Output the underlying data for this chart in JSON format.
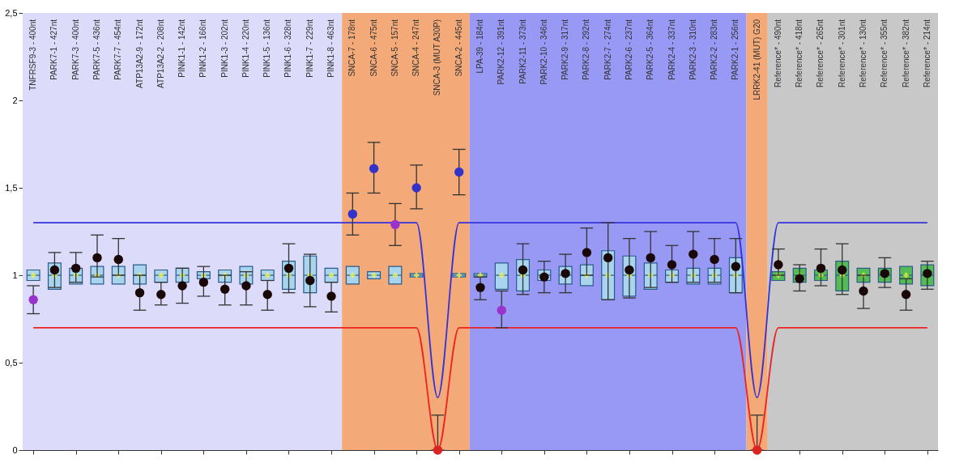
{
  "chart_data": {
    "type": "box",
    "categories": [
      "TNFRSF9-3 - 400nt",
      "PARK7-1 - 427nt",
      "PARK7-3 - 400nt",
      "PARK7-5 - 436nt",
      "PARK7-7 - 454nt",
      "ATP13A2-9 - 172nt",
      "ATP13A2-2 - 208nt",
      "PINK1-1 - 142nt",
      "PINK1-2 - 166nt",
      "PINK1-3 - 202nt",
      "PINK1-4 - 220nt",
      "PINK1-5 - 136nt",
      "PINK1-6 - 328nt",
      "PINK1-7 - 229nt",
      "PINK1-8 - 463nt",
      "SNCA-7 - 178nt",
      "SNCA-6 - 475nt",
      "SNCA-5 - 157nt",
      "SNCA-4 - 247nt",
      "SNCA-3 (MUT A30P)",
      "SNCA-2 - 445nt",
      "LPA-39 - 184nt",
      "PARK2-12 - 391nt",
      "PARK2-11 - 373nt",
      "PARK2-10 - 346nt",
      "PARK2-9 - 317nt",
      "PARK2-8 - 292nt",
      "PARK2-7 - 274nt",
      "PARK2-6 - 237nt",
      "PARK2-5 - 364nt",
      "PARK2-4 - 337nt",
      "PARK2-3 - 310nt",
      "PARK2-2 - 283nt",
      "PARK2-1 - 256nt",
      "LRRK2-41 (MUT) G20",
      "Reference* - 490nt",
      "Reference* - 418nt",
      "Reference* - 265nt",
      "Reference* - 301nt",
      "Reference* - 130nt",
      "Reference* - 355nt",
      "Reference* - 382nt",
      "Reference* - 214nt"
    ],
    "ylim": [
      0,
      2.5
    ],
    "yticks": [
      0,
      {
        "value": 0.5,
        "label": "0,5"
      },
      1,
      {
        "value": 1.5,
        "label": "1,5"
      },
      2,
      {
        "value": 2.5,
        "label": "2,5"
      }
    ],
    "bands": [
      {
        "axis": "x",
        "from": "TNFRSF9-3 - 400nt",
        "to": "PINK1-8 - 463nt",
        "color": "#dcdcfa"
      },
      {
        "axis": "x",
        "from": "SNCA-7 - 178nt",
        "to": "SNCA-2 - 445nt",
        "color": "#f3aa78"
      },
      {
        "axis": "x",
        "from": "LPA-39 - 184nt",
        "to": "PARK2-1 - 256nt",
        "color": "#9898f5"
      },
      {
        "axis": "x",
        "from": "LRRK2-41 (MUT) G20",
        "to": "LRRK2-41 (MUT) G20",
        "color": "#f3aa78"
      },
      {
        "axis": "x",
        "from": "Reference* - 490nt",
        "to": "Reference* - 214nt",
        "color": "#c8c8c8"
      }
    ],
    "series": [
      {
        "boxes": [
          {
            "low": 0.97,
            "q1": 0.97,
            "median": 1,
            "q3": 1.03,
            "high": 1.03,
            "mean": 1
          },
          {
            "low": 0.92,
            "q1": 0.92,
            "median": 1,
            "q3": 1.07,
            "high": 1.07,
            "mean": 1
          },
          {
            "low": 0.95,
            "q1": 0.95,
            "median": 1,
            "q3": 1.04,
            "high": 1.04,
            "mean": 1
          },
          {
            "low": 0.95,
            "q1": 0.95,
            "median": 1,
            "q3": 1.05,
            "high": 1.05,
            "mean": 1
          },
          {
            "low": 0.95,
            "q1": 0.95,
            "median": 1,
            "q3": 1.05,
            "high": 1.05,
            "mean": 1
          },
          {
            "low": 0.95,
            "q1": 0.95,
            "median": 1,
            "q3": 1.06,
            "high": 1.06,
            "mean": 1
          },
          {
            "low": 0.96,
            "q1": 0.96,
            "median": 1,
            "q3": 1.03,
            "high": 1.03,
            "mean": 1
          },
          {
            "low": 0.96,
            "q1": 0.96,
            "median": 1,
            "q3": 1.04,
            "high": 1.04,
            "mean": 1
          },
          {
            "low": 0.98,
            "q1": 0.98,
            "median": 1,
            "q3": 1.02,
            "high": 1.02,
            "mean": 1
          },
          {
            "low": 0.96,
            "q1": 0.96,
            "median": 1,
            "q3": 1.03,
            "high": 1.03,
            "mean": 1
          },
          {
            "low": 0.95,
            "q1": 0.95,
            "median": 1,
            "q3": 1.05,
            "high": 1.05,
            "mean": 1
          },
          {
            "low": 0.97,
            "q1": 0.97,
            "median": 1,
            "q3": 1.03,
            "high": 1.03,
            "mean": 1
          },
          {
            "low": 0.92,
            "q1": 0.92,
            "median": 1,
            "q3": 1.08,
            "high": 1.08,
            "mean": 1
          },
          {
            "low": 0.9,
            "q1": 0.9,
            "median": 1,
            "q3": 1.11,
            "high": 1.11,
            "mean": 1
          },
          {
            "low": 0.96,
            "q1": 0.96,
            "median": 1,
            "q3": 1.04,
            "high": 1.04,
            "mean": 1
          },
          {
            "low": 0.95,
            "q1": 0.95,
            "median": 1,
            "q3": 1.05,
            "high": 1.05,
            "mean": 1
          },
          {
            "low": 0.98,
            "q1": 0.98,
            "median": 1,
            "q3": 1.02,
            "high": 1.02,
            "mean": 1
          },
          {
            "low": 0.95,
            "q1": 0.95,
            "median": 1,
            "q3": 1.05,
            "high": 1.05,
            "mean": 1
          },
          {
            "low": 0.99,
            "q1": 0.99,
            "median": 1,
            "q3": 1.01,
            "high": 1.01,
            "mean": 1
          },
          null,
          {
            "low": 0.99,
            "q1": 0.99,
            "median": 1,
            "q3": 1.01,
            "high": 1.01,
            "mean": 1
          },
          {
            "low": 0.99,
            "q1": 0.99,
            "median": 1,
            "q3": 1.01,
            "high": 1.01,
            "mean": 1
          },
          {
            "low": 0.92,
            "q1": 0.92,
            "median": 1,
            "q3": 1.07,
            "high": 1.07,
            "mean": 1
          },
          {
            "low": 0.91,
            "q1": 0.91,
            "median": 1,
            "q3": 1.09,
            "high": 1.09,
            "mean": 1
          },
          {
            "low": 0.97,
            "q1": 0.97,
            "median": 1,
            "q3": 1.03,
            "high": 1.03,
            "mean": 1
          },
          {
            "low": 0.95,
            "q1": 0.95,
            "median": 1,
            "q3": 1.05,
            "high": 1.05,
            "mean": 1
          },
          {
            "low": 0.94,
            "q1": 0.94,
            "median": 1,
            "q3": 1.06,
            "high": 1.06,
            "mean": 1
          },
          {
            "low": 0.86,
            "q1": 0.86,
            "median": 1,
            "q3": 1.14,
            "high": 1.14,
            "mean": 1
          },
          {
            "low": 0.88,
            "q1": 0.88,
            "median": 1,
            "q3": 1.11,
            "high": 1.11,
            "mean": 1
          },
          {
            "low": 0.92,
            "q1": 0.92,
            "median": 1,
            "q3": 1.07,
            "high": 1.07,
            "mean": 1
          },
          {
            "low": 0.96,
            "q1": 0.96,
            "median": 1,
            "q3": 1.03,
            "high": 1.03,
            "mean": 1
          },
          {
            "low": 0.95,
            "q1": 0.95,
            "median": 1,
            "q3": 1.04,
            "high": 1.04,
            "mean": 1
          },
          {
            "low": 0.95,
            "q1": 0.95,
            "median": 1,
            "q3": 1.04,
            "high": 1.04,
            "mean": 1
          },
          {
            "low": 0.9,
            "q1": 0.9,
            "median": 1,
            "q3": 1.1,
            "high": 1.1,
            "mean": 1
          },
          null,
          {
            "low": 0.97,
            "q1": 0.97,
            "median": 1,
            "q3": 1.02,
            "high": 1.02,
            "mean": 1
          },
          {
            "low": 0.96,
            "q1": 0.96,
            "median": 1,
            "q3": 1.04,
            "high": 1.04,
            "mean": 1
          },
          {
            "low": 0.97,
            "q1": 0.97,
            "median": 1,
            "q3": 1.03,
            "high": 1.03,
            "mean": 1
          },
          {
            "low": 0.91,
            "q1": 0.91,
            "median": 1,
            "q3": 1.08,
            "high": 1.08,
            "mean": 1
          },
          {
            "low": 0.96,
            "q1": 0.96,
            "median": 1,
            "q3": 1.04,
            "high": 1.04,
            "mean": 1
          },
          {
            "low": 0.96,
            "q1": 0.96,
            "median": 1,
            "q3": 1.04,
            "high": 1.04,
            "mean": 1
          },
          {
            "low": 0.95,
            "q1": 0.95,
            "median": 1,
            "q3": 1.05,
            "high": 1.05,
            "mean": 1
          },
          {
            "low": 0.94,
            "q1": 0.94,
            "median": 1,
            "q3": 1.06,
            "high": 1.06,
            "mean": 1
          }
        ],
        "colors": [
          "#a8d4ee",
          "#a8d4ee",
          "#a8d4ee",
          "#a8d4ee",
          "#a8d4ee",
          "#a8d4ee",
          "#a8d4ee",
          "#a8d4ee",
          "#a8d4ee",
          "#a8d4ee",
          "#a8d4ee",
          "#a8d4ee",
          "#a8d4ee",
          "#a8d4ee",
          "#a8d4ee",
          "#a8d4ee",
          "#a8d4ee",
          "#a8d4ee",
          "#a8d4ee",
          null,
          "#a8d4ee",
          "#a8d4ee",
          "#a8d4ee",
          "#a8d4ee",
          "#a8d4ee",
          "#a8d4ee",
          "#a8d4ee",
          "#a8d4ee",
          "#a8d4ee",
          "#a8d4ee",
          "#a8d4ee",
          "#a8d4ee",
          "#a8d4ee",
          "#a8d4ee",
          null,
          "#55bb55",
          "#55bb55",
          "#55bb55",
          "#55bb55",
          "#55bb55",
          "#55bb55",
          "#55bb55",
          "#55bb55"
        ]
      },
      {
        "type": "line",
        "color": "#3333dd",
        "line_style": "solid",
        "values": [
          1.3,
          1.3,
          1.3,
          1.3,
          1.3,
          1.3,
          1.3,
          1.3,
          1.3,
          1.3,
          1.3,
          1.3,
          1.3,
          1.3,
          1.3,
          1.3,
          1.3,
          1.3,
          1.3,
          0.3,
          1.3,
          1.3,
          1.3,
          1.3,
          1.3,
          1.3,
          1.3,
          1.3,
          1.3,
          1.3,
          1.3,
          1.3,
          1.3,
          1.3,
          0.3,
          1.3,
          1.3,
          1.3,
          1.3,
          1.3,
          1.3,
          1.3,
          1.3
        ]
      },
      {
        "type": "line",
        "color": "#ee2222",
        "line_style": "solid",
        "values": [
          0.7,
          0.7,
          0.7,
          0.7,
          0.7,
          0.7,
          0.7,
          0.7,
          0.7,
          0.7,
          0.7,
          0.7,
          0.7,
          0.7,
          0.7,
          0.7,
          0.7,
          0.7,
          0.7,
          0,
          0.7,
          0.7,
          0.7,
          0.7,
          0.7,
          0.7,
          0.7,
          0.7,
          0.7,
          0.7,
          0.7,
          0.7,
          0.7,
          0.7,
          0,
          0.7,
          0.7,
          0.7,
          0.7,
          0.7,
          0.7,
          0.7,
          0.7
        ]
      },
      {
        "type": "scatter",
        "marker": "circle",
        "values": [
          0.86,
          1.03,
          1.04,
          1.1,
          1.09,
          0.9,
          0.89,
          0.94,
          0.96,
          0.92,
          0.94,
          0.89,
          1.04,
          0.97,
          0.88,
          1.35,
          1.61,
          1.29,
          1.5,
          0,
          1.59,
          0.93,
          0.8,
          1.03,
          0.99,
          1.01,
          1.13,
          1.1,
          1.03,
          1.1,
          1.06,
          1.12,
          1.09,
          1.05,
          0,
          1.06,
          0.98,
          1.04,
          1.03,
          0.91,
          1.01,
          0.89,
          1.01
        ],
        "errors": [
          [
            0.78,
            0.94
          ],
          [
            0.93,
            1.13
          ],
          [
            0.96,
            1.13
          ],
          [
            0.99,
            1.23
          ],
          [
            1.0,
            1.21
          ],
          [
            0.8,
            1.0
          ],
          [
            0.83,
            0.96
          ],
          [
            0.84,
            1.04
          ],
          [
            0.88,
            1.05
          ],
          [
            0.83,
            1.0
          ],
          [
            0.83,
            1.02
          ],
          [
            0.8,
            0.97
          ],
          [
            0.9,
            1.18
          ],
          [
            0.82,
            1.12
          ],
          [
            0.79,
            0.96
          ],
          [
            1.23,
            1.47
          ],
          [
            1.47,
            1.76
          ],
          [
            1.17,
            1.41
          ],
          [
            1.38,
            1.63
          ],
          [
            0,
            0.2
          ],
          [
            1.46,
            1.72
          ],
          [
            0.86,
            0.99
          ],
          [
            0.7,
            0.91
          ],
          [
            0.89,
            1.18
          ],
          [
            0.9,
            1.08
          ],
          [
            0.9,
            1.12
          ],
          [
            1.0,
            1.27
          ],
          [
            0.86,
            1.3
          ],
          [
            0.87,
            1.21
          ],
          [
            0.93,
            1.25
          ],
          [
            0.96,
            1.17
          ],
          [
            0.96,
            1.25
          ],
          [
            0.96,
            1.21
          ],
          [
            0.9,
            1.21
          ],
          [
            0,
            0.2
          ],
          [
            1.0,
            1.15
          ],
          [
            0.91,
            1.06
          ],
          [
            0.94,
            1.15
          ],
          [
            0.89,
            1.18
          ],
          [
            0.81,
            1.0
          ],
          [
            0.93,
            1.1
          ],
          [
            0.8,
            0.98
          ],
          [
            0.92,
            1.08
          ]
        ],
        "colors": [
          "#9933cc",
          "#1a0808",
          "#1a0808",
          "#1a0808",
          "#1a0808",
          "#1a0808",
          "#1a0808",
          "#1a0808",
          "#1a0808",
          "#1a0808",
          "#1a0808",
          "#1a0808",
          "#1a0808",
          "#1a0808",
          "#1a0808",
          "#3333cc",
          "#3333cc",
          "#9933cc",
          "#3333cc",
          "#dd2222",
          "#3333cc",
          "#1a0808",
          "#9933cc",
          "#1a0808",
          "#1a0808",
          "#1a0808",
          "#1a0808",
          "#1a0808",
          "#1a0808",
          "#1a0808",
          "#1a0808",
          "#1a0808",
          "#1a0808",
          "#1a0808",
          "#dd2222",
          "#1a0808",
          "#1a0808",
          "#1a0808",
          "#1a0808",
          "#1a0808",
          "#1a0808",
          "#1a0808",
          "#1a0808"
        ]
      }
    ]
  }
}
